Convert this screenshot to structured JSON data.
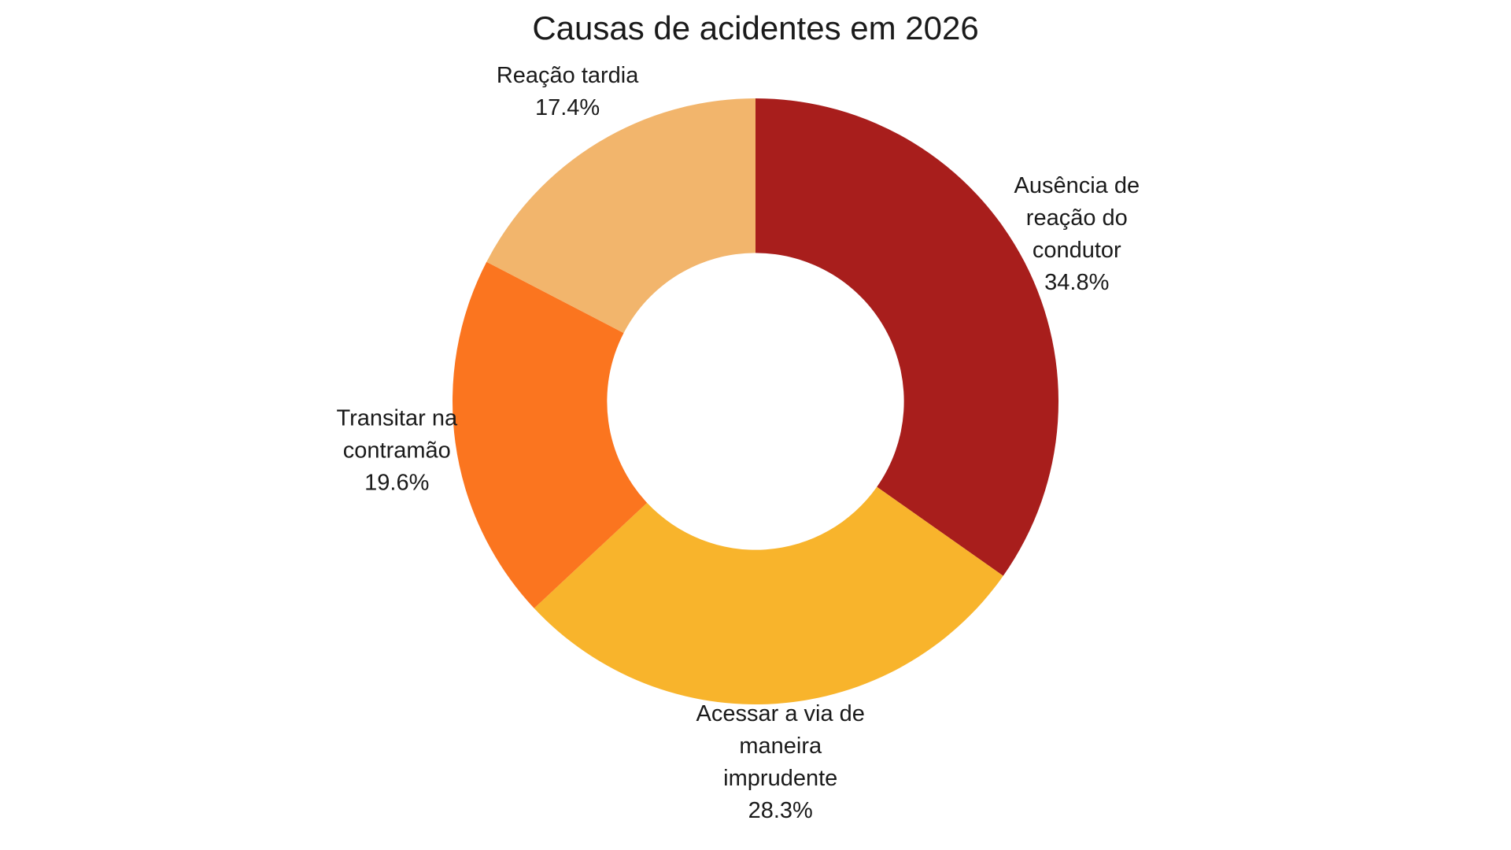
{
  "page": {
    "background": "#ffffff",
    "text_color": "#1a1a1a"
  },
  "chart_data": {
    "type": "pie",
    "variant": "donut",
    "title": "Causas de acidentes em 2026",
    "hole_ratio": 0.49,
    "start_angle_deg": 0,
    "direction": "clockwise",
    "legend": "none",
    "labels_position": "outside",
    "slices": [
      {
        "label": "Ausência de reação do condutor",
        "value": 34.8,
        "pct_label": "34.8%",
        "color": "#A81E1C",
        "label_lines": [
          "Ausência de",
          "reação do",
          "condutor",
          "34.8%"
        ]
      },
      {
        "label": "Acessar a via de maneira imprudente",
        "value": 28.3,
        "pct_label": "28.3%",
        "color": "#F8B42C",
        "label_lines": [
          "Acessar a via de",
          "maneira",
          "imprudente",
          "28.3%"
        ]
      },
      {
        "label": "Transitar na contramão",
        "value": 19.6,
        "pct_label": "19.6%",
        "color": "#FB751F",
        "label_lines": [
          "Transitar na",
          "contramão",
          "19.6%"
        ]
      },
      {
        "label": "Reação tardia",
        "value": 17.4,
        "pct_label": "17.4%",
        "color": "#F2B56C",
        "label_lines": [
          "Reação tardia",
          "17.4%"
        ]
      }
    ]
  }
}
